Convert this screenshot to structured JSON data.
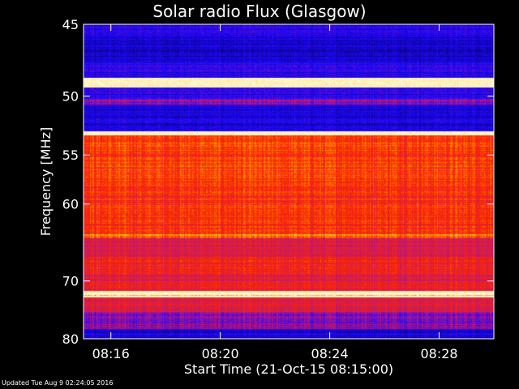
{
  "chart_data": {
    "type": "heatmap",
    "title": "Solar radio Flux (Glasgow)",
    "xlabel": "Start Time (21-Oct-15 08:15:00)",
    "ylabel": "Frequency [MHz]",
    "x_ticks": [
      "08:16",
      "08:20",
      "08:24",
      "08:28"
    ],
    "x_tick_minutes": [
      1,
      5,
      9,
      13
    ],
    "xlim_minutes": [
      0,
      15
    ],
    "y_ticks": [
      45,
      50,
      55,
      60,
      70,
      80
    ],
    "ylim": [
      45,
      80
    ],
    "y_scale": "reciprocal",
    "colormap": "rainbow",
    "bands": [
      {
        "fmin": 45.0,
        "fmax": 45.8,
        "level": 0.18
      },
      {
        "fmin": 45.8,
        "fmax": 47.5,
        "level": 0.12
      },
      {
        "fmin": 47.5,
        "fmax": 48.6,
        "level": 0.22
      },
      {
        "fmin": 48.6,
        "fmax": 49.3,
        "level": 1.0
      },
      {
        "fmin": 49.3,
        "fmax": 50.2,
        "level": 0.2
      },
      {
        "fmin": 50.2,
        "fmax": 50.6,
        "level": 0.35
      },
      {
        "fmin": 50.6,
        "fmax": 52.8,
        "level": 0.15
      },
      {
        "fmin": 52.8,
        "fmax": 53.2,
        "level": 0.95
      },
      {
        "fmin": 53.2,
        "fmax": 58.0,
        "level": 0.72
      },
      {
        "fmin": 58.0,
        "fmax": 63.5,
        "level": 0.68
      },
      {
        "fmin": 63.5,
        "fmax": 64.0,
        "level": 0.8
      },
      {
        "fmin": 64.0,
        "fmax": 66.5,
        "level": 0.55
      },
      {
        "fmin": 66.5,
        "fmax": 69.0,
        "level": 0.62
      },
      {
        "fmin": 69.0,
        "fmax": 71.5,
        "level": 0.58
      },
      {
        "fmin": 71.5,
        "fmax": 72.5,
        "level": 0.95
      },
      {
        "fmin": 72.5,
        "fmax": 75.0,
        "level": 0.55
      },
      {
        "fmin": 75.0,
        "fmax": 78.0,
        "level": 0.35
      },
      {
        "fmin": 78.0,
        "fmax": 80.0,
        "level": 0.15
      }
    ]
  },
  "footer": {
    "updated_text": "Updated Tue Aug  9 02:24:05 2016"
  }
}
